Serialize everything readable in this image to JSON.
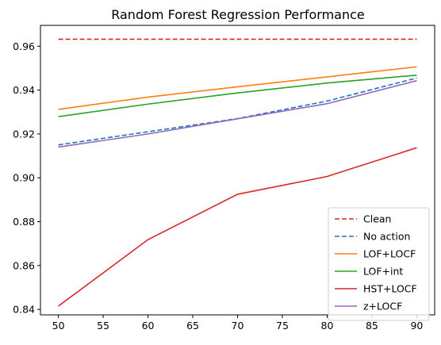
{
  "chart_data": {
    "type": "line",
    "title": "Random Forest Regression Performance",
    "xlabel": "",
    "ylabel": "",
    "x": [
      50,
      60,
      70,
      80,
      90
    ],
    "xlim": [
      48,
      92
    ],
    "ylim": [
      0.8375,
      0.9695
    ],
    "xticks": [
      50,
      55,
      60,
      65,
      70,
      75,
      80,
      85,
      90
    ],
    "yticks": [
      0.84,
      0.86,
      0.88,
      0.9,
      0.92,
      0.94,
      0.96
    ],
    "ytick_labels": [
      "0.84",
      "0.86",
      "0.88",
      "0.90",
      "0.92",
      "0.94",
      "0.96"
    ],
    "grid": false,
    "legend_position": "lower-right",
    "series": [
      {
        "name": "Clean",
        "values": [
          0.9632,
          0.9632,
          0.9632,
          0.9632,
          0.9632
        ],
        "color": "#d62728",
        "style": "dashed"
      },
      {
        "name": "No action",
        "values": [
          0.915,
          0.921,
          0.927,
          0.935,
          0.9455
        ],
        "color": "#1f77b4",
        "style": "dashed"
      },
      {
        "name": "LOF+LOCF",
        "values": [
          0.9312,
          0.9368,
          0.9415,
          0.946,
          0.9506
        ],
        "color": "#ff7f0e",
        "style": "solid"
      },
      {
        "name": "LOF+int",
        "values": [
          0.9279,
          0.9336,
          0.9387,
          0.9432,
          0.9468
        ],
        "color": "#2ca02c",
        "style": "solid"
      },
      {
        "name": "HST+LOCF",
        "values": [
          0.8415,
          0.8718,
          0.8925,
          0.9006,
          0.9137
        ],
        "color": "#d62728",
        "style": "solid"
      },
      {
        "name": "z+LOCF",
        "values": [
          0.914,
          0.92,
          0.9269,
          0.9338,
          0.9443
        ],
        "color": "#9467bd",
        "style": "solid"
      }
    ]
  }
}
